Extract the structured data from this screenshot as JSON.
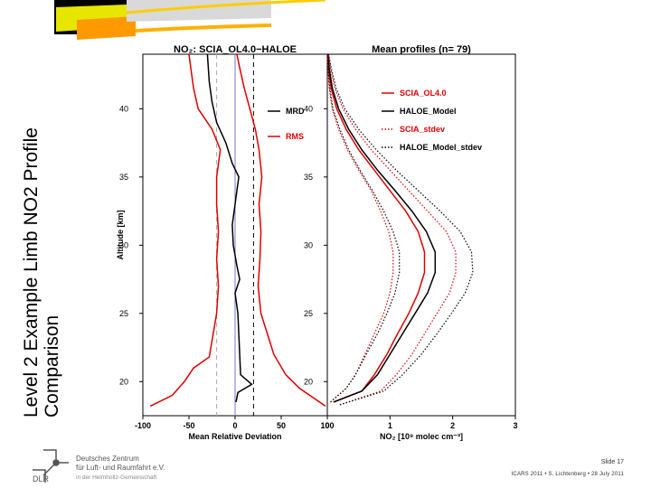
{
  "slide": {
    "title_line1": "Level 2 Example Limb NO2 Profile",
    "title_line2": "Comparison",
    "slide_number": "Slide 17",
    "footer_info": "ICARS 2011 • S. Lichtenberg • 28 July 2011",
    "logo_text": "DLR",
    "logo_lines": [
      "Deutsches Zentrum",
      "für Luft- und Raumfahrt e.V.",
      "in der Helmholtz-Gemeinschaft"
    ]
  },
  "chart_data": [
    {
      "type": "line",
      "title": "NO₂: SCIA_OL4.0−HALOE",
      "xlabel": "Mean Relative Deviation",
      "ylabel": "Altitude [km]",
      "xlim": [
        -100,
        100
      ],
      "ylim": [
        17.5,
        44
      ],
      "xticks": [
        -100,
        -50,
        0,
        50,
        100
      ],
      "yticks": [
        20,
        25,
        30,
        35,
        40
      ],
      "legend_position": "top-right",
      "series": [
        {
          "name": "MRD",
          "color": "#000000",
          "points": [
            [
              1,
              18.5
            ],
            [
              3,
              19.2
            ],
            [
              18,
              19.8
            ],
            [
              6,
              20.5
            ],
            [
              5,
              22
            ],
            [
              4,
              23.5
            ],
            [
              3,
              25
            ],
            [
              0,
              26.5
            ],
            [
              5,
              27.5
            ],
            [
              2,
              28.5
            ],
            [
              -2,
              30
            ],
            [
              -3,
              31.5
            ],
            [
              0,
              33
            ],
            [
              2,
              34
            ],
            [
              4,
              35
            ],
            [
              -3,
              36
            ],
            [
              -10,
              37.5
            ],
            [
              -20,
              39
            ],
            [
              -25,
              40.5
            ],
            [
              -28,
              42
            ],
            [
              -30,
              44
            ]
          ]
        },
        {
          "name": "RMS",
          "color": "#e00000",
          "points": [
            [
              -92,
              18.2
            ],
            [
              -68,
              19
            ],
            [
              -55,
              20
            ],
            [
              -45,
              21
            ],
            [
              -28,
              21.8
            ],
            [
              -25,
              23
            ],
            [
              -20,
              25
            ],
            [
              -18,
              27
            ],
            [
              -20,
              29
            ],
            [
              -18,
              31
            ],
            [
              -20,
              33
            ],
            [
              -20,
              35
            ],
            [
              -16,
              37
            ],
            [
              -25,
              38.5
            ],
            [
              -40,
              40
            ],
            [
              -45,
              41.5
            ],
            [
              -48,
              43
            ],
            [
              -50,
              44
            ]
          ]
        },
        {
          "name": "",
          "color": "#e00000",
          "points": [
            [
              98,
              18.2
            ],
            [
              70,
              19.5
            ],
            [
              55,
              20.5
            ],
            [
              42,
              22
            ],
            [
              35,
              23.5
            ],
            [
              28,
              25
            ],
            [
              25,
              27
            ],
            [
              27,
              29
            ],
            [
              28,
              31
            ],
            [
              26,
              33
            ],
            [
              29,
              35
            ],
            [
              26,
              37
            ],
            [
              22,
              38.5
            ],
            [
              16,
              40
            ],
            [
              10,
              41.5
            ],
            [
              5,
              43
            ],
            [
              2,
              44
            ]
          ]
        }
      ],
      "reference_lines": [
        {
          "x": 0,
          "color": "#7777cc",
          "style": "solid"
        },
        {
          "x": 20,
          "color": "#000000",
          "style": "dashed"
        },
        {
          "x": -20,
          "color": "#aaaaaa",
          "style": "dashed"
        }
      ]
    },
    {
      "type": "line",
      "title": "Mean profiles (n= 79)",
      "xlabel": "NO₂ [10⁹ molec cm⁻³]",
      "ylabel": "",
      "xlim": [
        0,
        3
      ],
      "ylim": [
        17.5,
        44
      ],
      "xticks": [
        0,
        1,
        2,
        3
      ],
      "xtick_labels": [
        "0",
        "1",
        "2",
        "3"
      ],
      "yticks": [
        20,
        25,
        30,
        35,
        40
      ],
      "legend_position": "top-right",
      "series": [
        {
          "name": "SCIA_OL4.0",
          "color": "#e00000",
          "style": "solid",
          "points": [
            [
              0.1,
              18.5
            ],
            [
              0.55,
              19.3
            ],
            [
              0.75,
              20.5
            ],
            [
              0.95,
              22
            ],
            [
              1.12,
              23.5
            ],
            [
              1.3,
              25
            ],
            [
              1.45,
              26.5
            ],
            [
              1.55,
              28
            ],
            [
              1.55,
              29.5
            ],
            [
              1.45,
              31
            ],
            [
              1.25,
              32.5
            ],
            [
              1.0,
              34
            ],
            [
              0.75,
              35.5
            ],
            [
              0.5,
              37
            ],
            [
              0.3,
              38.5
            ],
            [
              0.15,
              40
            ],
            [
              0.06,
              41.5
            ],
            [
              0.02,
              43
            ],
            [
              0.0,
              44
            ]
          ]
        },
        {
          "name": "HALOE_Model",
          "color": "#000000",
          "style": "solid",
          "points": [
            [
              0.1,
              18.5
            ],
            [
              0.55,
              19.3
            ],
            [
              0.8,
              20.5
            ],
            [
              1.0,
              22
            ],
            [
              1.2,
              23.5
            ],
            [
              1.4,
              25
            ],
            [
              1.6,
              26.5
            ],
            [
              1.72,
              28
            ],
            [
              1.72,
              29.5
            ],
            [
              1.58,
              31
            ],
            [
              1.35,
              32.5
            ],
            [
              1.08,
              34
            ],
            [
              0.8,
              35.5
            ],
            [
              0.55,
              37
            ],
            [
              0.34,
              38.5
            ],
            [
              0.18,
              40
            ],
            [
              0.08,
              41.5
            ],
            [
              0.03,
              43
            ],
            [
              0.01,
              44
            ]
          ]
        },
        {
          "name": "SCIA_stdev",
          "color": "#e00000",
          "style": "dotted",
          "points": [
            [
              0.2,
              18.3
            ],
            [
              0.85,
              19.3
            ],
            [
              1.1,
              20.5
            ],
            [
              1.35,
              22
            ],
            [
              1.55,
              23.5
            ],
            [
              1.75,
              25
            ],
            [
              1.95,
              26.5
            ],
            [
              2.05,
              28
            ],
            [
              2.05,
              29.5
            ],
            [
              1.9,
              31
            ],
            [
              1.6,
              32.5
            ],
            [
              1.3,
              34
            ],
            [
              1.0,
              35.5
            ],
            [
              0.7,
              37
            ],
            [
              0.45,
              38.5
            ],
            [
              0.25,
              40
            ],
            [
              0.12,
              41.5
            ],
            [
              0.05,
              43
            ],
            [
              0.02,
              44
            ]
          ]
        },
        {
          "name": "",
          "color": "#e00000",
          "style": "dotted",
          "points": [
            [
              0.05,
              18.5
            ],
            [
              0.3,
              19.5
            ],
            [
              0.45,
              20.5
            ],
            [
              0.6,
              22
            ],
            [
              0.75,
              23.5
            ],
            [
              0.9,
              25
            ],
            [
              1.0,
              26.5
            ],
            [
              1.05,
              28
            ],
            [
              1.05,
              29.5
            ],
            [
              0.98,
              31
            ],
            [
              0.85,
              32.5
            ],
            [
              0.7,
              34
            ],
            [
              0.5,
              35.5
            ],
            [
              0.32,
              37
            ],
            [
              0.18,
              38.5
            ],
            [
              0.08,
              40
            ],
            [
              0.03,
              41.5
            ],
            [
              0.01,
              43
            ],
            [
              0.0,
              44
            ]
          ]
        },
        {
          "name": "HALOE_Model_stdev",
          "color": "#000000",
          "style": "dotted",
          "points": [
            [
              0.2,
              18.3
            ],
            [
              0.9,
              19.3
            ],
            [
              1.2,
              20.5
            ],
            [
              1.5,
              22
            ],
            [
              1.75,
              23.5
            ],
            [
              1.98,
              25
            ],
            [
              2.2,
              26.5
            ],
            [
              2.32,
              28
            ],
            [
              2.3,
              29.5
            ],
            [
              2.12,
              31
            ],
            [
              1.8,
              32.5
            ],
            [
              1.45,
              34
            ],
            [
              1.1,
              35.5
            ],
            [
              0.78,
              37
            ],
            [
              0.5,
              38.5
            ],
            [
              0.28,
              40
            ],
            [
              0.14,
              41.5
            ],
            [
              0.06,
              43
            ],
            [
              0.02,
              44
            ]
          ]
        },
        {
          "name": "",
          "color": "#000000",
          "style": "dotted",
          "points": [
            [
              0.05,
              18.5
            ],
            [
              0.3,
              19.5
            ],
            [
              0.45,
              20.5
            ],
            [
              0.62,
              22
            ],
            [
              0.8,
              23.5
            ],
            [
              0.95,
              25
            ],
            [
              1.08,
              26.5
            ],
            [
              1.15,
              28
            ],
            [
              1.15,
              29.5
            ],
            [
              1.05,
              31
            ],
            [
              0.9,
              32.5
            ],
            [
              0.72,
              34
            ],
            [
              0.52,
              35.5
            ],
            [
              0.34,
              37
            ],
            [
              0.2,
              38.5
            ],
            [
              0.09,
              40
            ],
            [
              0.04,
              41.5
            ],
            [
              0.01,
              43
            ],
            [
              0.0,
              44
            ]
          ]
        }
      ]
    }
  ]
}
